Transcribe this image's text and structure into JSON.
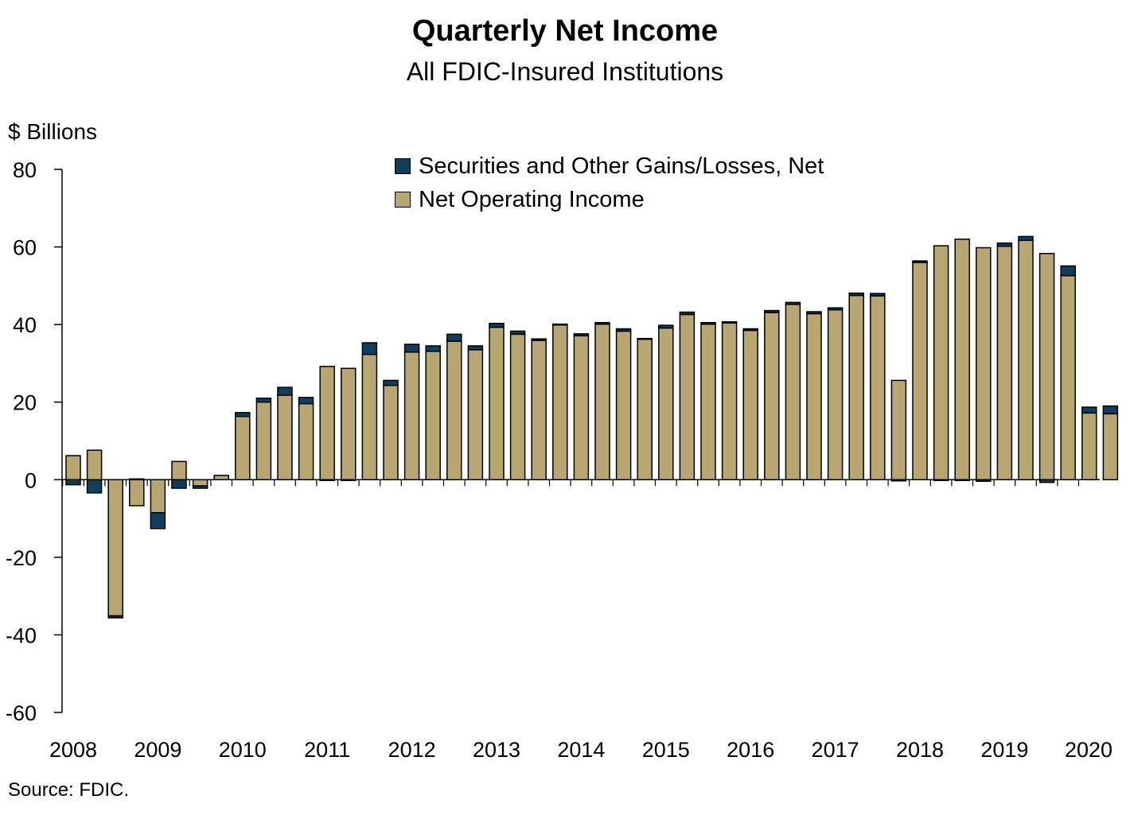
{
  "chart_data": {
    "type": "bar",
    "stacked": true,
    "title": "Quarterly Net Income",
    "subtitle": "All FDIC-Insured Institutions",
    "ylabel": "$ Billions",
    "source": "Source: FDIC.",
    "ylim": [
      -60,
      80
    ],
    "yticks": [
      80,
      60,
      40,
      20,
      0,
      -20,
      -40,
      -60
    ],
    "year_labels": [
      "2008",
      "2009",
      "2010",
      "2011",
      "2012",
      "2013",
      "2014",
      "2015",
      "2016",
      "2017",
      "2018",
      "2019",
      "2020"
    ],
    "quarters": [
      "2008 Q1",
      "2008 Q2",
      "2008 Q3",
      "2008 Q4",
      "2009 Q1",
      "2009 Q2",
      "2009 Q3",
      "2009 Q4",
      "2010 Q1",
      "2010 Q2",
      "2010 Q3",
      "2010 Q4",
      "2011 Q1",
      "2011 Q2",
      "2011 Q3",
      "2011 Q4",
      "2012 Q1",
      "2012 Q2",
      "2012 Q3",
      "2012 Q4",
      "2013 Q1",
      "2013 Q2",
      "2013 Q3",
      "2013 Q4",
      "2014 Q1",
      "2014 Q2",
      "2014 Q3",
      "2014 Q4",
      "2015 Q1",
      "2015 Q2",
      "2015 Q3",
      "2015 Q4",
      "2016 Q1",
      "2016 Q2",
      "2016 Q3",
      "2016 Q4",
      "2017 Q1",
      "2017 Q2",
      "2017 Q3",
      "2017 Q4",
      "2018 Q1",
      "2018 Q2",
      "2018 Q3",
      "2018 Q4",
      "2019 Q1",
      "2019 Q2",
      "2019 Q3",
      "2019 Q4",
      "2020 Q1",
      "2020 Q2"
    ],
    "series": [
      {
        "name": "Securities and Other Gains/Losses, Net",
        "color": "#0f3d5c",
        "values": [
          -1.3,
          -3.4,
          -0.5,
          0.2,
          -4.1,
          -2.2,
          -0.6,
          0.0,
          1.0,
          1.0,
          2.0,
          1.6,
          -0.2,
          -0.1,
          3.0,
          1.3,
          2.0,
          1.4,
          1.8,
          1.0,
          1.0,
          0.8,
          0.4,
          0.2,
          0.5,
          0.4,
          0.6,
          0.2,
          0.7,
          0.6,
          0.4,
          0.3,
          0.4,
          0.5,
          0.5,
          0.5,
          0.5,
          0.6,
          0.6,
          -0.3,
          0.4,
          -0.2,
          -0.1,
          -0.4,
          0.8,
          1.0,
          -0.7,
          2.5,
          1.5,
          2.0
        ]
      },
      {
        "name": "Net Operating Income",
        "color": "#b8a772",
        "values": [
          6.2,
          7.6,
          -35.1,
          -6.7,
          -8.5,
          4.7,
          -1.6,
          1.1,
          16.3,
          20.0,
          21.8,
          19.6,
          29.2,
          28.7,
          32.3,
          24.3,
          32.9,
          33.1,
          35.7,
          33.5,
          39.3,
          37.5,
          35.9,
          39.9,
          37.1,
          40.1,
          38.3,
          36.2,
          39.1,
          42.6,
          40.1,
          40.4,
          38.5,
          43.1,
          45.2,
          42.8,
          43.8,
          47.5,
          47.4,
          25.6,
          56.0,
          60.3,
          62.0,
          59.8,
          60.2,
          61.7,
          58.3,
          52.6,
          17.2,
          17.0
        ]
      }
    ]
  }
}
